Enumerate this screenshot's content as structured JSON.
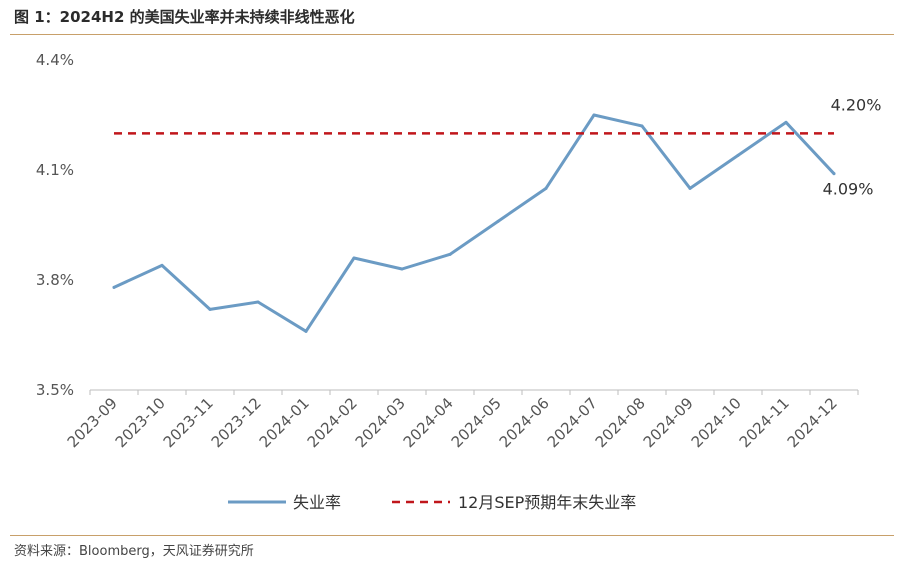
{
  "header": {
    "title": "图 1：2024H2 的美国失业率并未持续非线性恶化"
  },
  "footer": {
    "source": "资料来源：Bloomberg，天风证券研究所"
  },
  "chart_data": {
    "type": "line",
    "title": "",
    "xlabel": "",
    "ylabel": "",
    "categories": [
      "2023-09",
      "2023-10",
      "2023-11",
      "2023-12",
      "2024-01",
      "2024-02",
      "2024-03",
      "2024-04",
      "2024-05",
      "2024-06",
      "2024-07",
      "2024-08",
      "2024-09",
      "2024-10",
      "2024-11",
      "2024-12"
    ],
    "yticks": [
      "3.5%",
      "3.8%",
      "4.1%",
      "4.4%"
    ],
    "ylim": [
      3.5,
      4.4
    ],
    "series": [
      {
        "name": "失业率",
        "color": "#6b9bc4",
        "style": "solid",
        "values": [
          3.78,
          3.84,
          3.72,
          3.74,
          3.66,
          3.86,
          3.83,
          3.87,
          3.96,
          4.05,
          4.25,
          4.22,
          4.05,
          4.14,
          4.23,
          4.09
        ]
      },
      {
        "name": "12月SEP预期年末失业率",
        "color": "#c0161b",
        "style": "dashed",
        "values": [
          4.2,
          4.2,
          4.2,
          4.2,
          4.2,
          4.2,
          4.2,
          4.2,
          4.2,
          4.2,
          4.2,
          4.2,
          4.2,
          4.2,
          4.2,
          4.2
        ]
      }
    ],
    "annotations": [
      "4.20%",
      "4.09%"
    ],
    "legend_position": "bottom",
    "grid": false
  }
}
